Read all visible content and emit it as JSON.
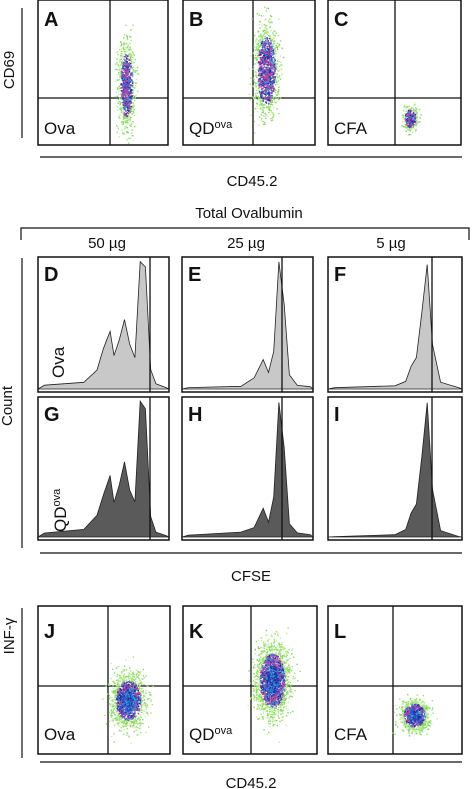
{
  "figure": {
    "row1": {
      "y_axis": "CD69",
      "x_axis": "CD45.2",
      "panels": [
        {
          "letter": "A",
          "condition": "Ova"
        },
        {
          "letter": "B",
          "condition": "QD",
          "condition_sup": "ova"
        },
        {
          "letter": "C",
          "condition": "CFA"
        }
      ]
    },
    "histograms": {
      "title": "Total Ovalbumin",
      "doses": [
        "50 µg",
        "25 µg",
        "5 µg"
      ],
      "y_axis": "Count",
      "x_axis": "CFSE",
      "rows": [
        {
          "condition": "Ova",
          "color": "#c8c8c8",
          "letters": [
            "D",
            "E",
            "F"
          ]
        },
        {
          "condition": "QD",
          "condition_sup": "ova",
          "color": "#5a5a5a",
          "letters": [
            "G",
            "H",
            "I"
          ]
        }
      ]
    },
    "row3": {
      "y_axis": "INF-γ",
      "x_axis": "CD45.2",
      "panels": [
        {
          "letter": "J",
          "condition": "Ova"
        },
        {
          "letter": "K",
          "condition": "QD",
          "condition_sup": "ova"
        },
        {
          "letter": "L",
          "condition": "CFA"
        }
      ]
    },
    "colors": {
      "dot_palette": [
        "#7ed957",
        "#9be36e",
        "#c2f0a0",
        "#d63a8a",
        "#b53fb0",
        "#3a4fd0",
        "#2a9fd8",
        "#1f2f9a"
      ],
      "axis_line": "#111111",
      "hist_light": "#c8c8c8",
      "hist_dark": "#5a5a5a"
    }
  }
}
